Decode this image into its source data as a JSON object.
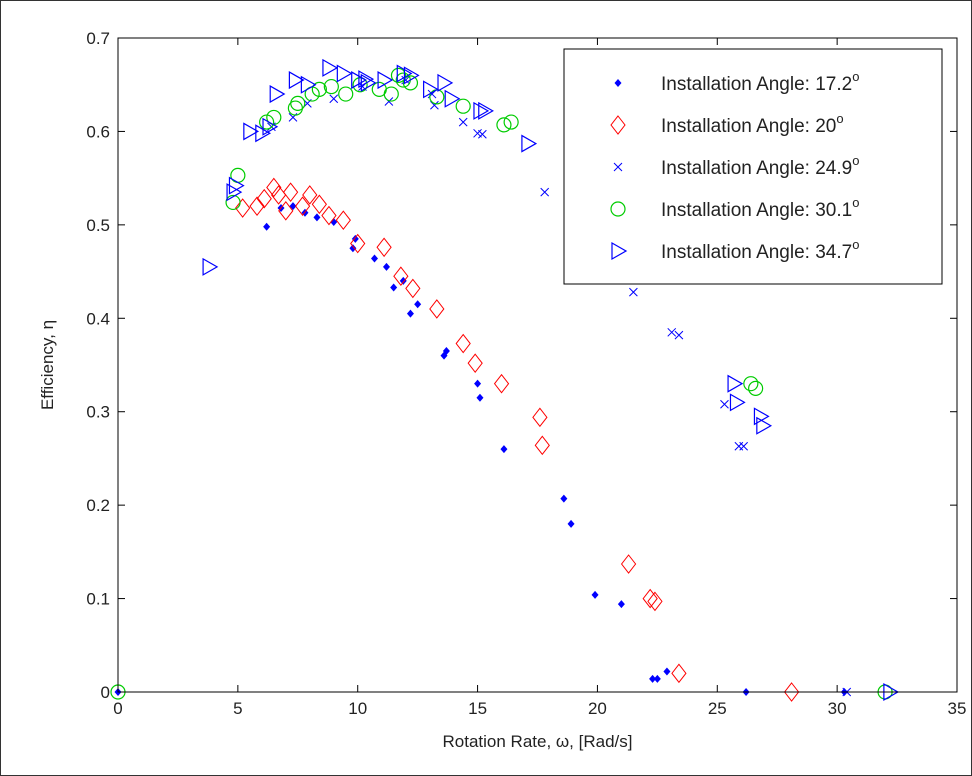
{
  "chart_data": {
    "type": "scatter",
    "xlabel": "Rotation Rate, ω, [Rad/s]",
    "ylabel": "Efficiency, η",
    "xlim": [
      0,
      35
    ],
    "ylim": [
      0,
      0.7
    ],
    "xticks": [
      0,
      5,
      10,
      15,
      20,
      25,
      30,
      35
    ],
    "yticks": [
      0,
      0.1,
      0.2,
      0.3,
      0.4,
      0.5,
      0.6,
      0.7
    ],
    "xtick_labels": [
      "0",
      "5",
      "10",
      "15",
      "20",
      "25",
      "30",
      "35"
    ],
    "ytick_labels": [
      "0",
      "0.1",
      "0.2",
      "0.3",
      "0.4",
      "0.5",
      "0.6",
      "0.7"
    ],
    "grid": false,
    "legend_position": "top-right",
    "series": [
      {
        "name": "Installation Angle: 17.2",
        "name_superscript": "o",
        "marker": "dot",
        "color": "#0000ff",
        "points": [
          [
            0,
            0
          ],
          [
            6.2,
            0.498
          ],
          [
            6.8,
            0.518
          ],
          [
            7.3,
            0.52
          ],
          [
            7.8,
            0.513
          ],
          [
            8.3,
            0.508
          ],
          [
            9.0,
            0.503
          ],
          [
            9.8,
            0.475
          ],
          [
            9.9,
            0.485
          ],
          [
            10.7,
            0.464
          ],
          [
            11.2,
            0.455
          ],
          [
            11.5,
            0.433
          ],
          [
            11.9,
            0.44
          ],
          [
            12.2,
            0.405
          ],
          [
            12.5,
            0.415
          ],
          [
            13.6,
            0.36
          ],
          [
            13.7,
            0.365
          ],
          [
            15.0,
            0.33
          ],
          [
            15.1,
            0.315
          ],
          [
            16.1,
            0.26
          ],
          [
            18.6,
            0.207
          ],
          [
            18.9,
            0.18
          ],
          [
            19.9,
            0.104
          ],
          [
            21.0,
            0.094
          ],
          [
            22.3,
            0.014
          ],
          [
            22.5,
            0.014
          ],
          [
            22.9,
            0.022
          ],
          [
            26.2,
            0
          ],
          [
            30.3,
            0
          ]
        ]
      },
      {
        "name": "Installation Angle: 20",
        "name_superscript": "o",
        "marker": "diamond",
        "color": "#ff0000",
        "points": [
          [
            5.2,
            0.518
          ],
          [
            5.8,
            0.52
          ],
          [
            6.1,
            0.528
          ],
          [
            6.5,
            0.54
          ],
          [
            6.7,
            0.532
          ],
          [
            7.0,
            0.515
          ],
          [
            7.2,
            0.535
          ],
          [
            7.7,
            0.52
          ],
          [
            8.0,
            0.532
          ],
          [
            8.4,
            0.522
          ],
          [
            8.8,
            0.51
          ],
          [
            9.4,
            0.505
          ],
          [
            10.0,
            0.48
          ],
          [
            11.1,
            0.476
          ],
          [
            11.8,
            0.445
          ],
          [
            12.3,
            0.432
          ],
          [
            13.3,
            0.41
          ],
          [
            14.4,
            0.373
          ],
          [
            14.9,
            0.352
          ],
          [
            16.0,
            0.33
          ],
          [
            17.6,
            0.294
          ],
          [
            17.7,
            0.264
          ],
          [
            21.3,
            0.137
          ],
          [
            22.2,
            0.1
          ],
          [
            22.4,
            0.097
          ],
          [
            23.4,
            0.02
          ],
          [
            28.1,
            0
          ]
        ]
      },
      {
        "name": "Installation Angle: 24.9",
        "name_superscript": "o",
        "marker": "x",
        "color": "#0000ff",
        "points": [
          [
            6.4,
            0.605
          ],
          [
            7.3,
            0.615
          ],
          [
            7.9,
            0.63
          ],
          [
            9.0,
            0.635
          ],
          [
            10.2,
            0.648
          ],
          [
            11.3,
            0.632
          ],
          [
            12.0,
            0.655
          ],
          [
            13.1,
            0.64
          ],
          [
            13.2,
            0.628
          ],
          [
            14.4,
            0.61
          ],
          [
            15.0,
            0.598
          ],
          [
            15.2,
            0.597
          ],
          [
            17.8,
            0.535
          ],
          [
            21.5,
            0.428
          ],
          [
            23.1,
            0.385
          ],
          [
            23.4,
            0.382
          ],
          [
            25.3,
            0.308
          ],
          [
            25.9,
            0.263
          ],
          [
            26.1,
            0.263
          ],
          [
            30.4,
            0
          ]
        ]
      },
      {
        "name": "Installation Angle: 30.1",
        "name_superscript": "o",
        "marker": "circle",
        "color": "#00cc00",
        "points": [
          [
            0,
            0
          ],
          [
            4.8,
            0.524
          ],
          [
            5.0,
            0.553
          ],
          [
            6.2,
            0.61
          ],
          [
            6.5,
            0.615
          ],
          [
            7.4,
            0.625
          ],
          [
            7.5,
            0.63
          ],
          [
            8.1,
            0.64
          ],
          [
            8.4,
            0.645
          ],
          [
            8.9,
            0.648
          ],
          [
            9.5,
            0.64
          ],
          [
            10.1,
            0.65
          ],
          [
            10.9,
            0.645
          ],
          [
            11.4,
            0.64
          ],
          [
            11.7,
            0.66
          ],
          [
            11.9,
            0.655
          ],
          [
            12.2,
            0.652
          ],
          [
            13.3,
            0.637
          ],
          [
            14.4,
            0.627
          ],
          [
            16.1,
            0.607
          ],
          [
            16.4,
            0.61
          ],
          [
            26.4,
            0.33
          ],
          [
            26.6,
            0.325
          ],
          [
            32.0,
            0
          ]
        ]
      },
      {
        "name": "Installation Angle: 34.7",
        "name_superscript": "o",
        "marker": "triangle-right",
        "color": "#0000ff",
        "points": [
          [
            3.8,
            0.455
          ],
          [
            4.8,
            0.535
          ],
          [
            4.9,
            0.542
          ],
          [
            5.5,
            0.6
          ],
          [
            6.0,
            0.598
          ],
          [
            6.3,
            0.605
          ],
          [
            6.6,
            0.64
          ],
          [
            7.4,
            0.655
          ],
          [
            7.9,
            0.65
          ],
          [
            8.8,
            0.668
          ],
          [
            9.4,
            0.662
          ],
          [
            10.0,
            0.655
          ],
          [
            10.3,
            0.656
          ],
          [
            10.4,
            0.652
          ],
          [
            11.1,
            0.655
          ],
          [
            11.9,
            0.662
          ],
          [
            12.2,
            0.66
          ],
          [
            13.0,
            0.645
          ],
          [
            13.6,
            0.652
          ],
          [
            13.9,
            0.635
          ],
          [
            15.1,
            0.622
          ],
          [
            15.3,
            0.622
          ],
          [
            17.1,
            0.587
          ],
          [
            25.7,
            0.33
          ],
          [
            25.8,
            0.31
          ],
          [
            26.8,
            0.295
          ],
          [
            26.9,
            0.285
          ],
          [
            32.2,
            0
          ]
        ]
      }
    ]
  }
}
